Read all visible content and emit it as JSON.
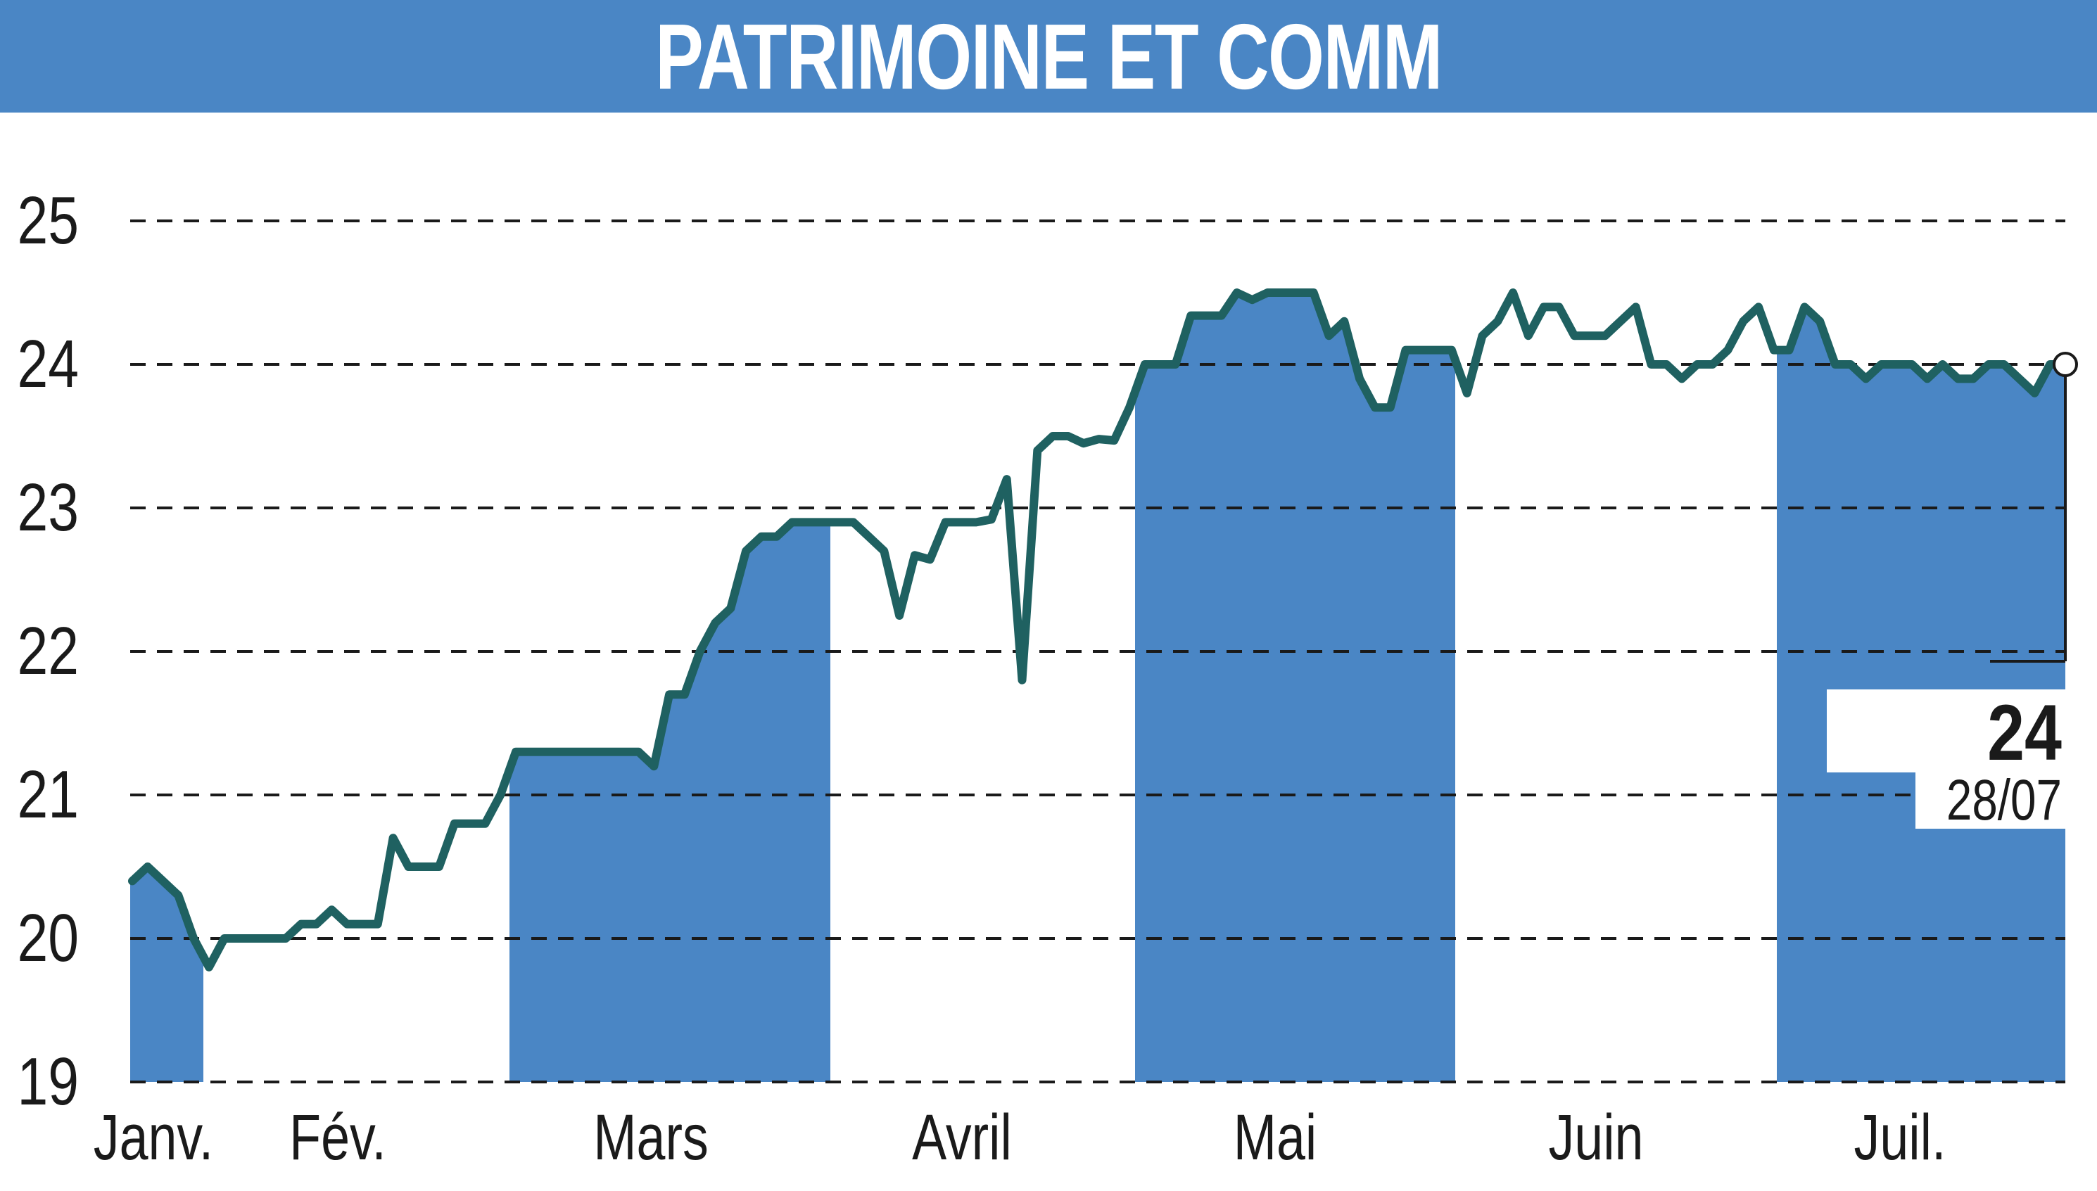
{
  "title": "PATRIMOINE ET COMM",
  "chart_data": {
    "type": "line",
    "title": "PATRIMOINE ET COMM",
    "xlabel": "",
    "ylabel": "",
    "ylim": [
      19,
      25
    ],
    "yticks": [
      "19",
      "20",
      "21",
      "22",
      "23",
      "24",
      "25"
    ],
    "grid": true,
    "month_labels": [
      "Janv.",
      "Fév.",
      "Mars",
      "Avril",
      "Mai",
      "Juin",
      "Juil."
    ],
    "month_shading": [
      true,
      false,
      true,
      false,
      true,
      false,
      true
    ],
    "last_value": "24",
    "last_date": "28/07",
    "series": [
      {
        "values": [
          20.4,
          20.5,
          20.4,
          20.3,
          20.0,
          19.8,
          20.0,
          20.0,
          20.0,
          20.0,
          20.0,
          20.1,
          20.1,
          20.2,
          20.1,
          20.1,
          20.1,
          20.7,
          20.5,
          20.5,
          20.5,
          20.8,
          20.8,
          20.8,
          21.0,
          21.3,
          21.3,
          21.3,
          21.3,
          21.3,
          21.3,
          21.3,
          21.3,
          21.3,
          21.2,
          21.7,
          21.7,
          22.0,
          22.2,
          22.3,
          22.7,
          22.8,
          22.8,
          22.9,
          22.9,
          22.9,
          22.9,
          22.9,
          22.8,
          22.7,
          22.25,
          22.67,
          22.64,
          22.9,
          22.9,
          22.9,
          22.92,
          23.2,
          21.8,
          23.4,
          23.5,
          23.5,
          23.45,
          23.48,
          23.47,
          23.7,
          24.0,
          24.0,
          24.0,
          24.34,
          24.34,
          24.34,
          24.5,
          24.45,
          24.5,
          24.5,
          24.5,
          24.5,
          24.2,
          24.3,
          23.9,
          23.7,
          23.7,
          24.1,
          24.1,
          24.1,
          24.1,
          23.8,
          24.2,
          24.3,
          24.5,
          24.2,
          24.4,
          24.4,
          24.2,
          24.2,
          24.2,
          24.3,
          24.4,
          24.0,
          24.0,
          23.9,
          24.0,
          24.0,
          24.1,
          24.3,
          24.4,
          24.1,
          24.1,
          24.4,
          24.3,
          24.0,
          24.0,
          23.9,
          24.0,
          24.0,
          24.0,
          23.9,
          24.0,
          23.9,
          23.9,
          24.0,
          24.0,
          23.9,
          23.8,
          24.0,
          24.0
        ]
      }
    ]
  },
  "colors": {
    "title_bar": "#4a86c5",
    "shading": "#4a86c5",
    "line": "#1f6161",
    "grid": "#1a1a1a"
  }
}
